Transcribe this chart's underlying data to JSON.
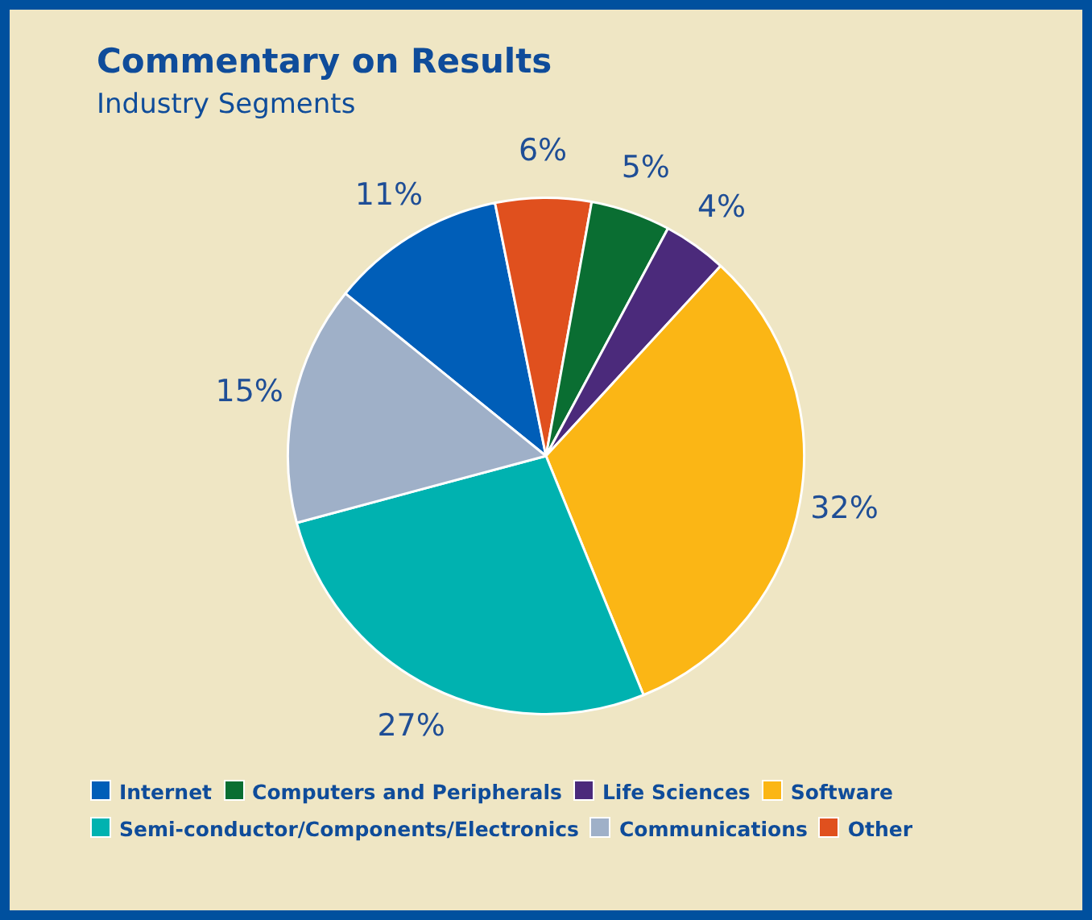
{
  "chart_data": {
    "type": "pie",
    "title": "Commentary on Results",
    "subtitle": "Industry Segments",
    "categories": [
      "Internet",
      "Other",
      "Computers and Peripherals",
      "Life Sciences",
      "Software",
      "Semi-conductor/Components/Electronics",
      "Communications"
    ],
    "values": [
      11,
      6,
      5,
      4,
      32,
      27,
      15
    ],
    "value_labels": [
      "11%",
      "6%",
      "5%",
      "4%",
      "32%",
      "27%",
      "15%"
    ],
    "colors": [
      "#005eb8",
      "#e0501e",
      "#0a6e32",
      "#4b2a7b",
      "#fbb615",
      "#00b2b0",
      "#9fb0c8"
    ],
    "legend": "bottom"
  }
}
